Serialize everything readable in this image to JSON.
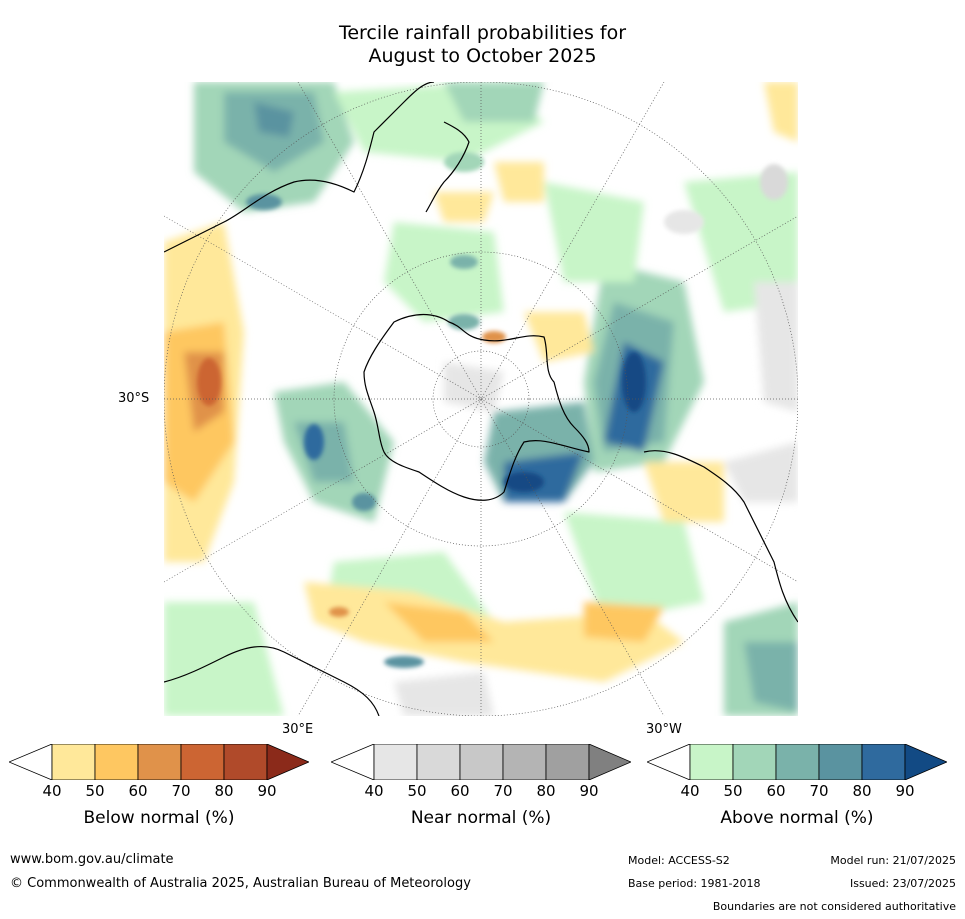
{
  "title": {
    "line1": "Tercile rainfall probabilities for",
    "line2": "August to October 2025"
  },
  "map": {
    "lat_label": "30°S",
    "lon_labels": {
      "east": "30°E",
      "west": "30°W"
    },
    "colors": {
      "land_outline": "#000000",
      "grid": "#555555"
    }
  },
  "colorbars": [
    {
      "label": "Below normal (%)",
      "ticks": [
        "40",
        "50",
        "60",
        "70",
        "80",
        "90"
      ],
      "colors": [
        "#ffffff",
        "#ffe89a",
        "#fec761",
        "#e0924a",
        "#cc6533",
        "#b04a2a",
        "#8b2a1a"
      ]
    },
    {
      "label": "Near normal (%)",
      "ticks": [
        "40",
        "50",
        "60",
        "70",
        "80",
        "90"
      ],
      "colors": [
        "#ffffff",
        "#e6e6e6",
        "#d9d9d9",
        "#c8c8c8",
        "#b4b4b4",
        "#a0a0a0",
        "#808080"
      ]
    },
    {
      "label": "Above normal (%)",
      "ticks": [
        "40",
        "50",
        "60",
        "70",
        "80",
        "90"
      ],
      "colors": [
        "#ffffff",
        "#c8f5c8",
        "#a2d6b8",
        "#7ab2aa",
        "#5a93a0",
        "#2f6a9e",
        "#124a84"
      ]
    }
  ],
  "footer": {
    "website": "www.bom.gov.au/climate",
    "copyright": "© Commonwealth of Australia 2025, Australian Bureau of Meteorology",
    "model": "Model: ACCESS-S2",
    "model_run": "Model run: 21/07/2025",
    "base_period": "Base period: 1981-2018",
    "issued": "Issued: 23/07/2025",
    "boundaries_note": "Boundaries are not considered authoritative"
  }
}
